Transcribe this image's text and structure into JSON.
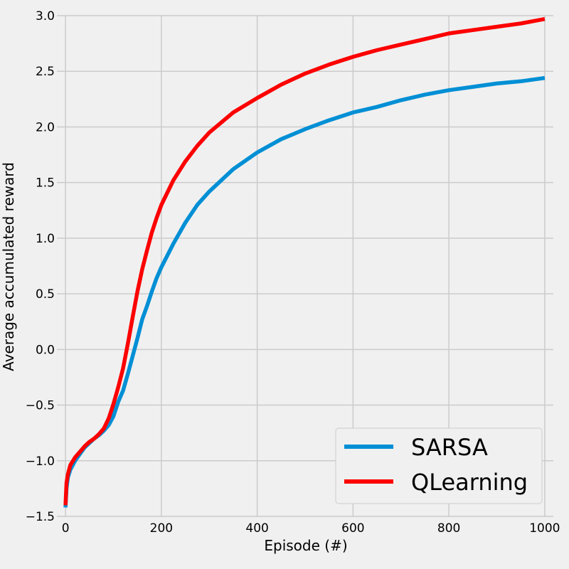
{
  "chart_data": {
    "type": "line",
    "title": "",
    "xlabel": "Episode (#)",
    "ylabel": "Average accumulated reward",
    "xlim": [
      -18,
      1018
    ],
    "ylim": [
      -1.5,
      3.0
    ],
    "x_ticks": [
      0,
      200,
      400,
      600,
      800,
      1000
    ],
    "x_tick_labels": [
      "0",
      "200",
      "400",
      "600",
      "800",
      "1000"
    ],
    "y_ticks": [
      -1.5,
      -1.0,
      -0.5,
      0.0,
      0.5,
      1.0,
      1.5,
      2.0,
      2.5,
      3.0
    ],
    "y_tick_labels": [
      "−1.5",
      "−1.0",
      "−0.5",
      "0.0",
      "0.5",
      "1.0",
      "1.5",
      "2.0",
      "2.5",
      "3.0"
    ],
    "grid": true,
    "legend_position": "bottom-right",
    "series": [
      {
        "name": "SARSA",
        "color": "#008fd5",
        "x": [
          0,
          2,
          5,
          10,
          20,
          30,
          40,
          50,
          60,
          70,
          80,
          90,
          100,
          110,
          120,
          130,
          140,
          150,
          160,
          170,
          180,
          190,
          200,
          225,
          250,
          275,
          300,
          350,
          400,
          450,
          500,
          550,
          600,
          650,
          700,
          750,
          800,
          850,
          900,
          950,
          1000
        ],
        "y": [
          -1.42,
          -1.25,
          -1.15,
          -1.08,
          -1.0,
          -0.94,
          -0.88,
          -0.84,
          -0.8,
          -0.77,
          -0.73,
          -0.68,
          -0.6,
          -0.47,
          -0.37,
          -0.22,
          -0.06,
          0.1,
          0.27,
          0.39,
          0.52,
          0.64,
          0.74,
          0.95,
          1.14,
          1.3,
          1.42,
          1.62,
          1.77,
          1.89,
          1.98,
          2.06,
          2.13,
          2.18,
          2.24,
          2.29,
          2.33,
          2.36,
          2.39,
          2.41,
          2.44
        ]
      },
      {
        "name": "QLearning",
        "color": "#fc0000",
        "x": [
          0,
          2,
          5,
          10,
          20,
          30,
          40,
          50,
          60,
          70,
          80,
          90,
          100,
          110,
          120,
          130,
          140,
          150,
          160,
          170,
          180,
          190,
          200,
          225,
          250,
          275,
          300,
          350,
          400,
          450,
          500,
          550,
          600,
          650,
          700,
          750,
          800,
          850,
          900,
          950,
          1000
        ],
        "y": [
          -1.4,
          -1.2,
          -1.12,
          -1.04,
          -0.97,
          -0.92,
          -0.87,
          -0.83,
          -0.8,
          -0.76,
          -0.71,
          -0.62,
          -0.49,
          -0.34,
          -0.17,
          0.05,
          0.29,
          0.52,
          0.72,
          0.89,
          1.05,
          1.18,
          1.3,
          1.52,
          1.69,
          1.83,
          1.95,
          2.13,
          2.26,
          2.38,
          2.48,
          2.56,
          2.63,
          2.69,
          2.74,
          2.79,
          2.84,
          2.87,
          2.9,
          2.93,
          2.97
        ]
      }
    ]
  }
}
